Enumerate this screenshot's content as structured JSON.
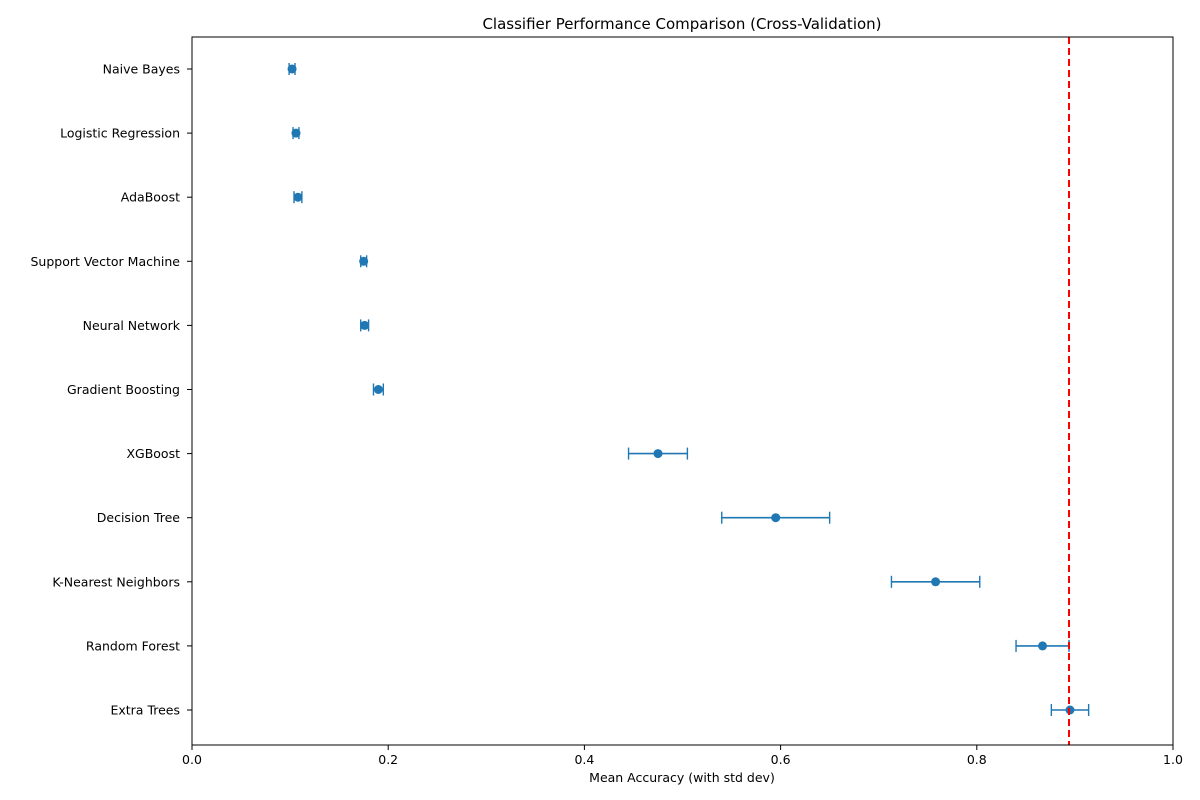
{
  "chart_data": {
    "type": "errorbar",
    "title": "Classifier Performance Comparison (Cross-Validation)",
    "xlabel": "Mean Accuracy (with std dev)",
    "ylabel": "",
    "xlim": [
      0,
      1
    ],
    "x_ticks": [
      "0.0",
      "0.2",
      "0.4",
      "0.6",
      "0.8",
      "1.0"
    ],
    "x_tick_values": [
      0.0,
      0.2,
      0.4,
      0.6,
      0.8,
      1.0
    ],
    "grid": false,
    "colors": {
      "marker": "#1f77b4",
      "reference_line": "#ff0000"
    },
    "reference_line": {
      "x": 0.894,
      "style": "dashed"
    },
    "categories": [
      "Naive Bayes",
      "Logistic Regression",
      "AdaBoost",
      "Support Vector Machine",
      "Neural Network",
      "Gradient Boosting",
      "XGBoost",
      "Decision Tree",
      "K-Nearest Neighbors",
      "Random Forest",
      "Extra Trees"
    ],
    "means": [
      0.102,
      0.106,
      0.108,
      0.175,
      0.176,
      0.19,
      0.475,
      0.595,
      0.758,
      0.867,
      0.895
    ],
    "std": [
      0.003,
      0.003,
      0.004,
      0.003,
      0.004,
      0.005,
      0.03,
      0.055,
      0.045,
      0.027,
      0.019
    ]
  }
}
